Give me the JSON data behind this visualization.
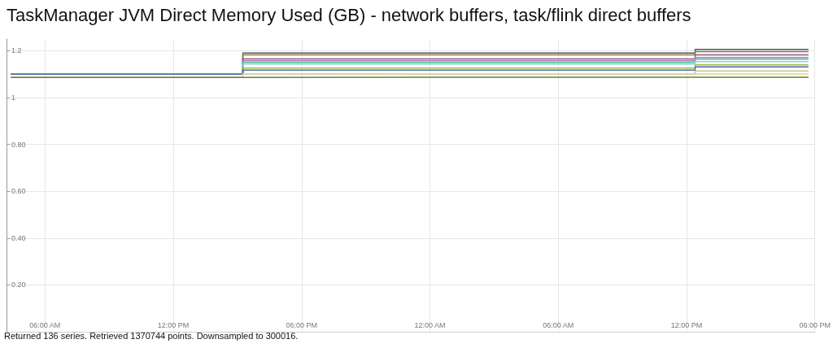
{
  "chart_data": {
    "type": "step",
    "title": "TaskManager JVM Direct Memory Used (GB) - network buffers, task/flink direct buffers",
    "annotations": [
      "Returned 136 series. Retrieved 1370744 points. Downsampled to 300016."
    ],
    "x": [
      "--01-01T04:24",
      "--01-01T15:15",
      "--01-02T12:24",
      "--01-02T17:42"
    ],
    "series": [
      {
        "color": "#4d5a6e",
        "values": [
          1.1,
          1.19,
          1.206,
          1.206
        ]
      },
      {
        "color": "#8c7d3a",
        "values": [
          1.1,
          1.182,
          1.196,
          1.196
        ]
      },
      {
        "color": "#8e4f8e",
        "values": [
          1.1,
          1.165,
          1.182,
          1.182
        ]
      },
      {
        "color": "#b57aa5",
        "values": [
          1.1,
          1.157,
          1.171,
          1.171
        ]
      },
      {
        "color": "#4fc1a8",
        "values": [
          1.1,
          1.15,
          1.164,
          1.164
        ]
      },
      {
        "color": "#8ad6d6",
        "values": [
          1.1,
          1.143,
          1.154,
          1.154
        ]
      },
      {
        "color": "#a8b84a",
        "values": [
          1.1,
          1.126,
          1.14,
          1.14
        ]
      },
      {
        "color": "#4a6fa5",
        "values": [
          1.1,
          1.117,
          1.131,
          1.131
        ]
      },
      {
        "color": "#c9c38a",
        "values": [
          1.086,
          1.101,
          1.114,
          1.114
        ]
      },
      {
        "color": "#d8d4a8",
        "values": [
          1.086,
          1.101,
          1.101,
          1.101
        ]
      },
      {
        "color": "#6b7d3a",
        "values": [
          1.086,
          1.087,
          1.087,
          1.087
        ]
      }
    ],
    "xlim": [
      "--01-01T04:12",
      "--01-02T18:00"
    ],
    "xticks": [
      {
        "value": "--01-01T06:00",
        "label": "06:00 AM"
      },
      {
        "value": "--01-01T12:00",
        "label": "12:00 PM"
      },
      {
        "value": "--01-01T18:00",
        "label": "06:00 PM"
      },
      {
        "value": "--01-02T00:00",
        "label": "12:00 AM"
      },
      {
        "value": "--01-02T06:00",
        "label": "06:00 AM"
      },
      {
        "value": "--01-02T12:00",
        "label": "12:00 PM"
      },
      {
        "value": "--01-02T18:00",
        "label": "06:00 PM"
      }
    ],
    "ylim": [
      0,
      1.25
    ],
    "yticks": [
      {
        "value": 0.2,
        "label": "0.20"
      },
      {
        "value": 0.4,
        "label": "0.40"
      },
      {
        "value": 0.6,
        "label": "0.60"
      },
      {
        "value": 0.8,
        "label": "0.80"
      },
      {
        "value": 1,
        "label": "1"
      },
      {
        "value": 1.2,
        "label": "1.2"
      }
    ],
    "grid": true,
    "marker": "none",
    "line_style": "solid"
  }
}
